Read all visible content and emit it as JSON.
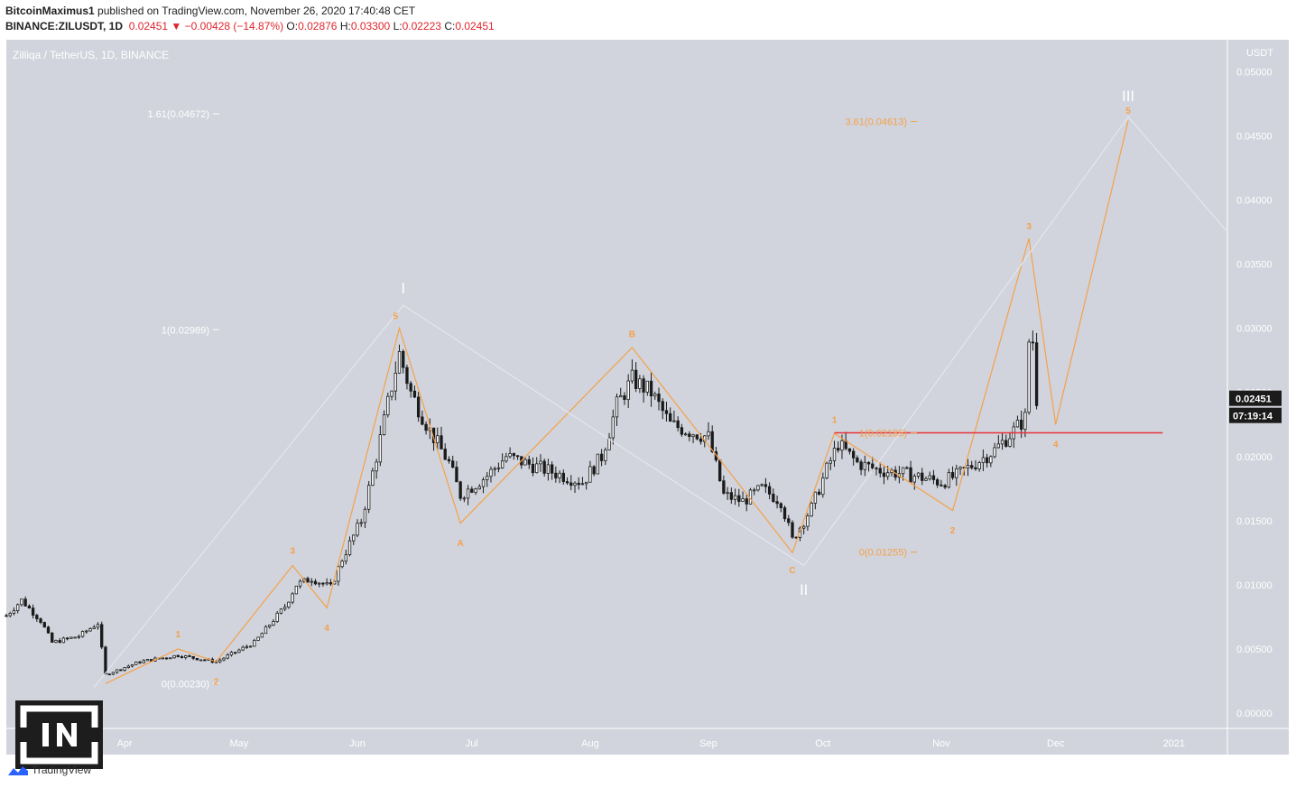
{
  "header": {
    "publisher": "BitcoinMaximus1",
    "published_text": "published on TradingView.com, November 26, 2020 17:40:48 CET",
    "symbol": "BINANCE:ZILUSDT, 1D",
    "last": "0.02451",
    "change": "−0.00428 (−14.87%)",
    "o_label": "O:",
    "o": "0.02876",
    "h_label": "H:",
    "h": "0.03300",
    "l_label": "L:",
    "l": "0.02223",
    "c_label": "C:",
    "c": "0.02451"
  },
  "chart_data": {
    "type": "candlestick",
    "title": "Zilliqa / TetherUS, 1D, BINANCE",
    "currency": "USDT",
    "ylim": [
      -0.0012,
      0.0525
    ],
    "y_ticks": [
      "0.05000",
      "0.04500",
      "0.04000",
      "0.03500",
      "0.03000",
      "0.02500",
      "0.02000",
      "0.01500",
      "0.01000",
      "0.00500",
      "0.00000"
    ],
    "x_ticks": [
      {
        "label": "Apr",
        "date": "2020-04-01"
      },
      {
        "label": "May",
        "date": "2020-05-01"
      },
      {
        "label": "Jun",
        "date": "2020-06-01"
      },
      {
        "label": "Jul",
        "date": "2020-07-01"
      },
      {
        "label": "Aug",
        "date": "2020-08-01"
      },
      {
        "label": "Sep",
        "date": "2020-09-01"
      },
      {
        "label": "Oct",
        "date": "2020-10-01"
      },
      {
        "label": "Nov",
        "date": "2020-11-01"
      },
      {
        "label": "Dec",
        "date": "2020-12-01"
      },
      {
        "label": "2021",
        "date": "2021-01-01"
      }
    ],
    "x_range": [
      "2020-03-01",
      "2021-01-15"
    ],
    "price_anchors": [
      [
        "2020-03-01",
        0.0076
      ],
      [
        "2020-03-05",
        0.0088
      ],
      [
        "2020-03-10",
        0.0072
      ],
      [
        "2020-03-13",
        0.0055
      ],
      [
        "2020-03-20",
        0.006
      ],
      [
        "2020-03-25",
        0.007
      ],
      [
        "2020-03-26",
        0.005
      ],
      [
        "2020-03-27",
        0.003
      ],
      [
        "2020-04-05",
        0.004
      ],
      [
        "2020-04-15",
        0.0045
      ],
      [
        "2020-04-25",
        0.004
      ],
      [
        "2020-05-05",
        0.0055
      ],
      [
        "2020-05-13",
        0.0083
      ],
      [
        "2020-05-16",
        0.01
      ],
      [
        "2020-05-20",
        0.0105
      ],
      [
        "2020-05-25",
        0.0098
      ],
      [
        "2020-05-28",
        0.012
      ],
      [
        "2020-06-02",
        0.015
      ],
      [
        "2020-06-06",
        0.02
      ],
      [
        "2020-06-10",
        0.0255
      ],
      [
        "2020-06-12",
        0.028
      ],
      [
        "2020-06-15",
        0.025
      ],
      [
        "2020-06-20",
        0.022
      ],
      [
        "2020-06-25",
        0.0195
      ],
      [
        "2020-06-28",
        0.017
      ],
      [
        "2020-07-05",
        0.0185
      ],
      [
        "2020-07-10",
        0.02
      ],
      [
        "2020-07-20",
        0.019
      ],
      [
        "2020-07-30",
        0.018
      ],
      [
        "2020-08-04",
        0.02
      ],
      [
        "2020-08-08",
        0.024
      ],
      [
        "2020-08-12",
        0.026
      ],
      [
        "2020-08-17",
        0.025
      ],
      [
        "2020-08-22",
        0.0225
      ],
      [
        "2020-09-01",
        0.0215
      ],
      [
        "2020-09-05",
        0.017
      ],
      [
        "2020-09-10",
        0.0165
      ],
      [
        "2020-09-15",
        0.0175
      ],
      [
        "2020-09-20",
        0.0165
      ],
      [
        "2020-09-23",
        0.0135
      ],
      [
        "2020-09-28",
        0.016
      ],
      [
        "2020-10-02",
        0.019
      ],
      [
        "2020-10-05",
        0.021
      ],
      [
        "2020-10-10",
        0.0195
      ],
      [
        "2020-10-15",
        0.019
      ],
      [
        "2020-10-25",
        0.0185
      ],
      [
        "2020-11-01",
        0.018
      ],
      [
        "2020-11-05",
        0.0185
      ],
      [
        "2020-11-10",
        0.0195
      ],
      [
        "2020-11-15",
        0.0205
      ],
      [
        "2020-11-20",
        0.022
      ],
      [
        "2020-11-23",
        0.023
      ],
      [
        "2020-11-24",
        0.029
      ],
      [
        "2020-11-25",
        0.029
      ],
      [
        "2020-11-26",
        0.0245
      ]
    ],
    "last_price_label": "0.02451",
    "countdown_label": "07:19:14",
    "horizontal_line": {
      "price": 0.02185,
      "from": "2020-10-04",
      "to": "2020-12-29",
      "color": "#e5333a"
    },
    "fib_levels": [
      {
        "label": "1.61(0.04672)",
        "price": 0.04672,
        "group": "white"
      },
      {
        "label": "1(0.02989)",
        "price": 0.02989,
        "group": "white"
      },
      {
        "label": "0(0.00230)",
        "price": 0.0023,
        "group": "white"
      },
      {
        "label": "3.61(0.04613)",
        "price": 0.04613,
        "group": "orange"
      },
      {
        "label": "1(0.02185)",
        "price": 0.02185,
        "group": "orange"
      },
      {
        "label": "0(0.01255)",
        "price": 0.01255,
        "group": "orange"
      }
    ],
    "wave_lines": [
      {
        "color": "#f5a14a",
        "points": [
          [
            "2020-03-27",
            0.0023
          ],
          [
            "2020-04-15",
            0.005
          ],
          [
            "2020-04-25",
            0.004
          ],
          [
            "2020-05-15",
            0.0115
          ],
          [
            "2020-05-24",
            0.0082
          ],
          [
            "2020-06-12",
            0.03
          ],
          [
            "2020-06-28",
            0.0148
          ],
          [
            "2020-08-12",
            0.0285
          ],
          [
            "2020-09-23",
            0.0125
          ],
          [
            "2020-10-04",
            0.0218
          ],
          [
            "2020-11-04",
            0.0158
          ],
          [
            "2020-11-24",
            0.037
          ],
          [
            "2020-12-01",
            0.0225
          ],
          [
            "2020-12-20",
            0.0462
          ]
        ]
      },
      {
        "color": "#e4e6ee",
        "points": [
          [
            "2020-03-24",
            0.002
          ],
          [
            "2020-06-13",
            0.0318
          ],
          [
            "2020-09-26",
            0.0115
          ],
          [
            "2020-12-20",
            0.0465
          ],
          [
            "2021-01-15",
            0.0375
          ]
        ]
      }
    ],
    "wave_labels": [
      {
        "text": "1",
        "date": "2020-04-15",
        "price": 0.0062,
        "color": "orange"
      },
      {
        "text": "2",
        "date": "2020-04-25",
        "price": 0.0025,
        "color": "orange"
      },
      {
        "text": "3",
        "date": "2020-05-15",
        "price": 0.0127,
        "color": "orange"
      },
      {
        "text": "4",
        "date": "2020-05-24",
        "price": 0.0067,
        "color": "orange"
      },
      {
        "text": "5",
        "date": "2020-06-11",
        "price": 0.031,
        "color": "orange"
      },
      {
        "text": "A",
        "date": "2020-06-28",
        "price": 0.0133,
        "color": "orange"
      },
      {
        "text": "B",
        "date": "2020-08-12",
        "price": 0.0296,
        "color": "orange"
      },
      {
        "text": "C",
        "date": "2020-09-23",
        "price": 0.0112,
        "color": "orange"
      },
      {
        "text": "1",
        "date": "2020-10-04",
        "price": 0.0229,
        "color": "orange"
      },
      {
        "text": "2",
        "date": "2020-11-04",
        "price": 0.0143,
        "color": "orange"
      },
      {
        "text": "3",
        "date": "2020-11-24",
        "price": 0.038,
        "color": "orange"
      },
      {
        "text": "4",
        "date": "2020-12-01",
        "price": 0.021,
        "color": "orange"
      },
      {
        "text": "5",
        "date": "2020-12-20",
        "price": 0.047,
        "color": "orange"
      },
      {
        "text": "I",
        "date": "2020-06-13",
        "price": 0.033,
        "color": "white"
      },
      {
        "text": "II",
        "date": "2020-09-26",
        "price": 0.0095,
        "color": "white"
      },
      {
        "text": "III",
        "date": "2020-12-20",
        "price": 0.048,
        "color": "white"
      }
    ]
  },
  "footer": {
    "tradingview_label": "TradingView"
  }
}
